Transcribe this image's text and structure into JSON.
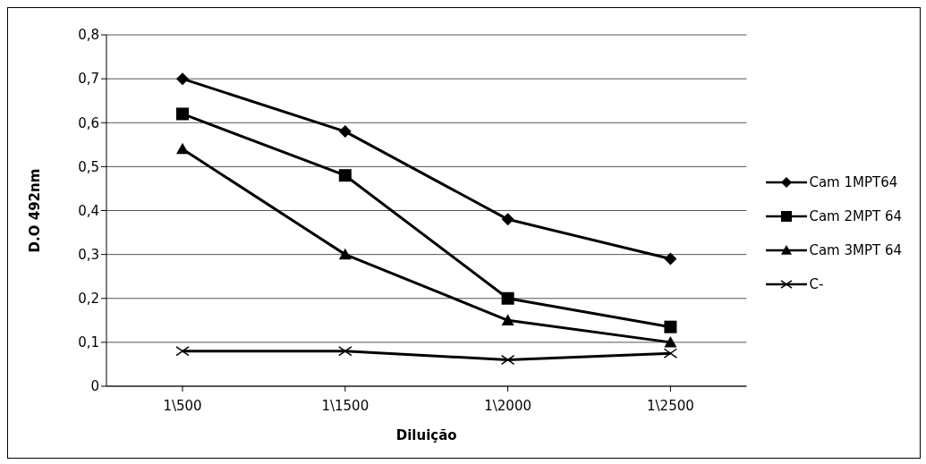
{
  "chart_data": {
    "type": "line",
    "xlabel": "Diluição",
    "ylabel": "D.O 492nm",
    "categories": [
      "1\\500",
      "1\\1500",
      "1\\2000",
      "1\\2500"
    ],
    "series": [
      {
        "name": "Cam 1MPT64",
        "color": "#000000",
        "marker": "diamond",
        "values": [
          0.7,
          0.58,
          0.38,
          0.29
        ]
      },
      {
        "name": "Cam 2MPT 64",
        "color": "#000000",
        "marker": "square",
        "values": [
          0.62,
          0.48,
          0.2,
          0.135
        ]
      },
      {
        "name": "Cam 3MPT 64",
        "color": "#000000",
        "marker": "triangle",
        "values": [
          0.54,
          0.3,
          0.15,
          0.1
        ]
      },
      {
        "name": "C-",
        "color": "#000000",
        "marker": "cross",
        "values": [
          0.08,
          0.08,
          0.06,
          0.075
        ]
      }
    ],
    "ylim": [
      0,
      0.8
    ],
    "yticks": [
      0,
      {
        "value": 0.1,
        "label": "0,1"
      },
      {
        "value": 0.2,
        "label": "0,2"
      },
      {
        "value": 0.3,
        "label": "0,3"
      },
      {
        "value": 0.4,
        "label": "0,4"
      },
      {
        "value": 0.5,
        "label": "0,5"
      },
      {
        "value": 0.6,
        "label": "0,6"
      },
      {
        "value": 0.7,
        "label": "0,7"
      },
      {
        "value": 0.8,
        "label": "0,8"
      }
    ],
    "grid": "y",
    "legend": "right",
    "line_style": "solid"
  }
}
